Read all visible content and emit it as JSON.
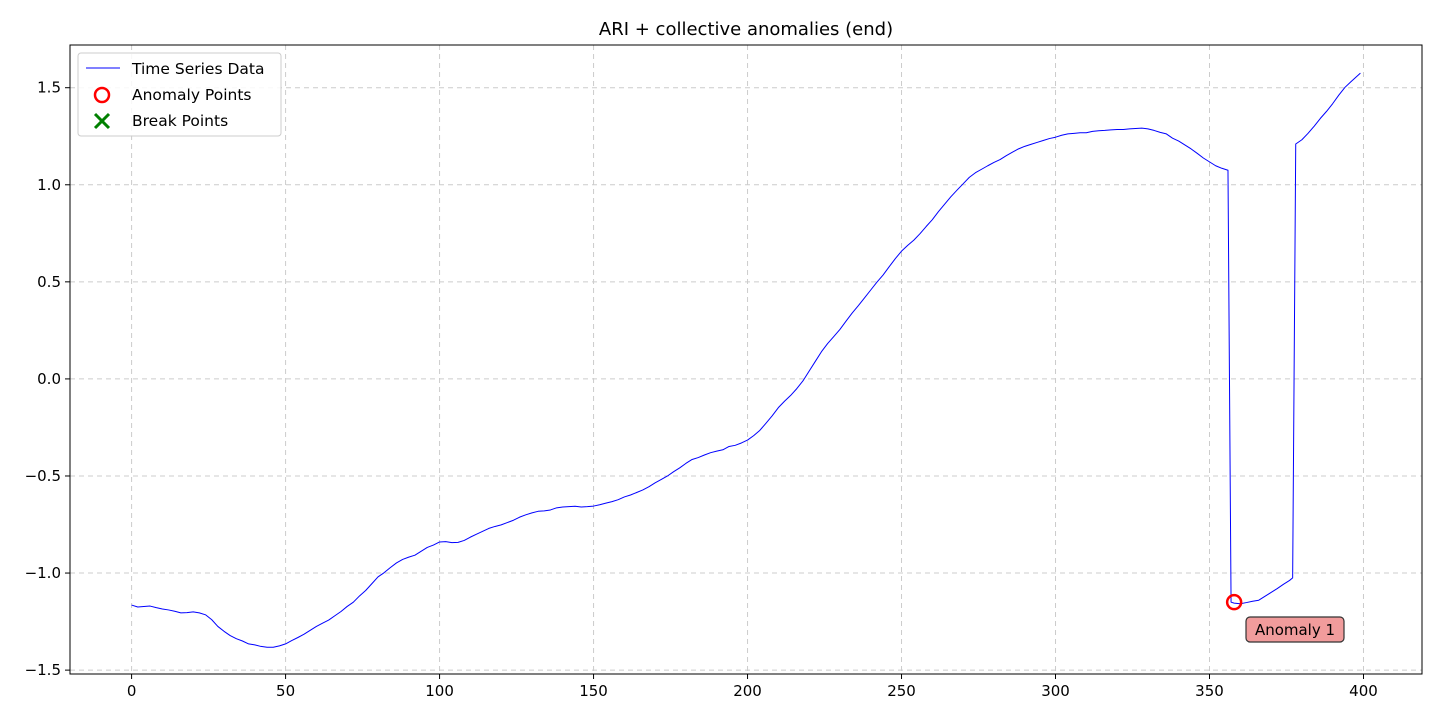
{
  "chart_data": {
    "type": "line",
    "title": "ARI + collective anomalies (end)",
    "xlabel": "",
    "ylabel": "",
    "xlim": [
      -20,
      419
    ],
    "ylim": [
      -1.52,
      1.72
    ],
    "x_ticks": [
      0,
      50,
      100,
      150,
      200,
      250,
      300,
      350,
      400
    ],
    "y_ticks": [
      -1.5,
      -1.0,
      -0.5,
      0.0,
      0.5,
      1.0,
      1.5
    ],
    "x_tick_labels": [
      "0",
      "50",
      "100",
      "150",
      "200",
      "250",
      "300",
      "350",
      "400"
    ],
    "y_tick_labels": [
      "−1.5",
      "−1.0",
      "−0.5",
      "0.0",
      "0.5",
      "1.0",
      "1.5"
    ],
    "grid": true,
    "legend_placement": "top-left",
    "legend": [
      "Time Series Data",
      "Anomaly Points",
      "Break Points"
    ],
    "colors": {
      "series": "#0000ff",
      "anomaly": "#ff0000",
      "break": "#008000",
      "annotation_fill": "#f19c9c",
      "grid": "#cccccc"
    },
    "series": [
      {
        "name": "Time Series Data",
        "x": [
          0,
          2,
          4,
          6,
          8,
          10,
          12,
          14,
          16,
          18,
          20,
          22,
          24,
          26,
          28,
          30,
          32,
          34,
          36,
          38,
          40,
          42,
          44,
          46,
          48,
          50,
          52,
          54,
          56,
          58,
          60,
          62,
          64,
          66,
          68,
          70,
          72,
          74,
          76,
          78,
          80,
          82,
          84,
          86,
          88,
          90,
          92,
          94,
          96,
          98,
          100,
          102,
          104,
          106,
          108,
          110,
          112,
          114,
          116,
          118,
          120,
          122,
          124,
          126,
          128,
          130,
          132,
          134,
          136,
          138,
          140,
          142,
          144,
          146,
          148,
          150,
          152,
          154,
          156,
          158,
          160,
          162,
          164,
          166,
          168,
          170,
          172,
          174,
          176,
          178,
          180,
          182,
          184,
          186,
          188,
          190,
          192,
          194,
          196,
          198,
          200,
          202,
          204,
          206,
          208,
          210,
          212,
          214,
          216,
          218,
          220,
          222,
          224,
          226,
          228,
          230,
          232,
          234,
          236,
          238,
          240,
          242,
          244,
          246,
          248,
          250,
          252,
          254,
          256,
          258,
          260,
          262,
          264,
          266,
          268,
          270,
          272,
          274,
          276,
          278,
          280,
          282,
          284,
          286,
          288,
          290,
          292,
          294,
          296,
          298,
          300,
          302,
          304,
          306,
          308,
          310,
          312,
          314,
          316,
          318,
          320,
          322,
          324,
          326,
          328,
          330,
          332,
          334,
          336,
          338,
          340,
          342,
          344,
          346,
          348,
          350,
          352,
          354,
          356,
          357,
          358,
          360,
          362,
          364,
          366,
          368,
          370,
          372,
          374,
          376,
          377,
          378,
          380,
          382,
          384,
          386,
          388,
          390,
          392,
          394,
          396,
          399
        ],
        "values": [
          -1.165,
          -1.175,
          -1.172,
          -1.17,
          -1.178,
          -1.185,
          -1.19,
          -1.197,
          -1.205,
          -1.204,
          -1.2,
          -1.205,
          -1.215,
          -1.24,
          -1.275,
          -1.3,
          -1.322,
          -1.338,
          -1.35,
          -1.365,
          -1.37,
          -1.378,
          -1.382,
          -1.382,
          -1.375,
          -1.365,
          -1.348,
          -1.332,
          -1.315,
          -1.295,
          -1.275,
          -1.258,
          -1.242,
          -1.22,
          -1.198,
          -1.172,
          -1.15,
          -1.118,
          -1.09,
          -1.055,
          -1.02,
          -0.998,
          -0.972,
          -0.948,
          -0.93,
          -0.918,
          -0.908,
          -0.888,
          -0.868,
          -0.856,
          -0.84,
          -0.838,
          -0.843,
          -0.842,
          -0.832,
          -0.815,
          -0.8,
          -0.785,
          -0.77,
          -0.76,
          -0.752,
          -0.74,
          -0.728,
          -0.712,
          -0.7,
          -0.69,
          -0.682,
          -0.68,
          -0.675,
          -0.664,
          -0.66,
          -0.658,
          -0.656,
          -0.66,
          -0.658,
          -0.655,
          -0.648,
          -0.64,
          -0.632,
          -0.622,
          -0.608,
          -0.598,
          -0.585,
          -0.572,
          -0.555,
          -0.535,
          -0.518,
          -0.5,
          -0.478,
          -0.458,
          -0.435,
          -0.415,
          -0.405,
          -0.392,
          -0.38,
          -0.372,
          -0.365,
          -0.348,
          -0.342,
          -0.33,
          -0.315,
          -0.292,
          -0.265,
          -0.228,
          -0.19,
          -0.148,
          -0.115,
          -0.085,
          -0.05,
          -0.01,
          0.04,
          0.09,
          0.14,
          0.182,
          0.218,
          0.255,
          0.298,
          0.34,
          0.378,
          0.418,
          0.458,
          0.498,
          0.535,
          0.578,
          0.62,
          0.658,
          0.688,
          0.715,
          0.748,
          0.785,
          0.82,
          0.862,
          0.9,
          0.938,
          0.972,
          1.005,
          1.038,
          1.062,
          1.08,
          1.098,
          1.115,
          1.13,
          1.15,
          1.168,
          1.185,
          1.198,
          1.208,
          1.218,
          1.228,
          1.238,
          1.245,
          1.255,
          1.262,
          1.265,
          1.268,
          1.268,
          1.275,
          1.278,
          1.28,
          1.283,
          1.285,
          1.285,
          1.288,
          1.29,
          1.292,
          1.288,
          1.28,
          1.27,
          1.262,
          1.24,
          1.225,
          1.205,
          1.185,
          1.162,
          1.138,
          1.118,
          1.098,
          1.085,
          1.075,
          -1.15,
          -1.155,
          -1.158,
          -1.152,
          -1.145,
          -1.14,
          -1.12,
          -1.1,
          -1.08,
          -1.058,
          -1.038,
          -1.025,
          1.21,
          1.232,
          1.265,
          1.302,
          1.342,
          1.378,
          1.418,
          1.462,
          1.502,
          1.532,
          1.575
        ]
      }
    ],
    "anomaly_points": [
      {
        "x": 358,
        "y": -1.15
      }
    ],
    "break_points": [],
    "annotations": [
      {
        "text": "Anomaly 1",
        "x": 358,
        "y": -1.15
      }
    ]
  }
}
